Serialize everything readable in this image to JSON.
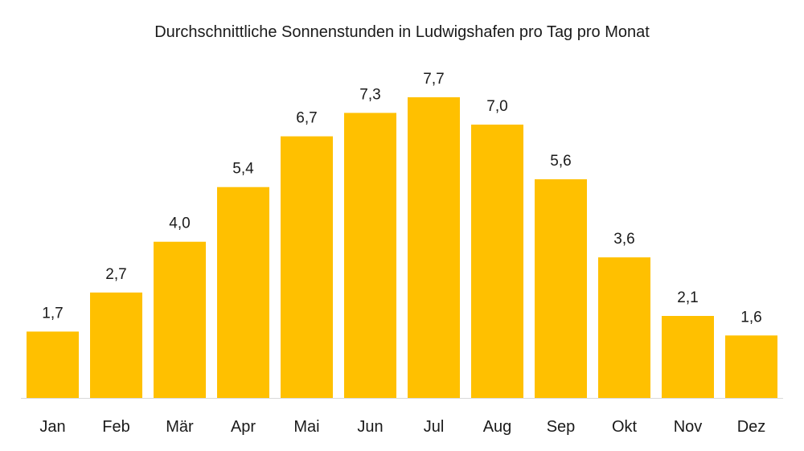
{
  "chart_data": {
    "type": "bar",
    "title": "Durchschnittliche Sonnenstunden in Ludwigshafen pro Tag pro Monat",
    "xlabel": "",
    "ylabel": "",
    "categories": [
      "Jan",
      "Feb",
      "Mär",
      "Apr",
      "Mai",
      "Jun",
      "Jul",
      "Aug",
      "Sep",
      "Okt",
      "Nov",
      "Dez"
    ],
    "values": [
      1.7,
      2.7,
      4.0,
      5.4,
      6.7,
      7.3,
      7.7,
      7.0,
      5.6,
      3.6,
      2.1,
      1.6
    ],
    "value_labels": [
      "1,7",
      "2,7",
      "4,0",
      "5,4",
      "6,7",
      "7,3",
      "7,7",
      "7,0",
      "5,6",
      "3,6",
      "2,1",
      "1,6"
    ],
    "ylim": [
      0,
      7.7
    ],
    "grid": false,
    "legend": "none",
    "bar_color": "#FFC000",
    "axis_color": "#D9D9D9"
  }
}
